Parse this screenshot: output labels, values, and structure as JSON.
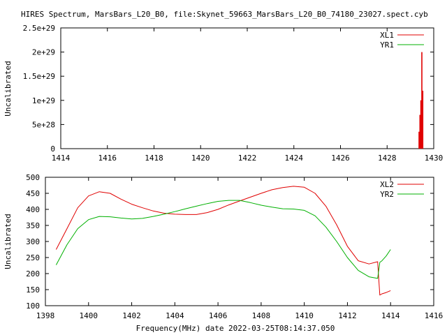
{
  "page": {
    "title": "HIRES Spectrum, MarsBars_L20_B0, file:Skynet_59663_MarsBars_L20_B0_74180_23027.spect.cyb",
    "footer_xlabel": "Frequency(MHz) date 2022-03-25T08:14:37.050"
  },
  "colors": {
    "series_1": "#e00000",
    "series_2": "#00b000",
    "axis": "#000000",
    "background": "#ffffff"
  },
  "chart_data": [
    {
      "type": "line",
      "title": "",
      "xlabel": "",
      "ylabel": "Uncalibrated",
      "xlim": [
        1414,
        1430
      ],
      "ylim": [
        0,
        2.5e+29
      ],
      "x_ticks": [
        "1414",
        "1416",
        "1418",
        "1420",
        "1422",
        "1424",
        "1426",
        "1428",
        "1430"
      ],
      "x_tick_values": [
        1414,
        1416,
        1418,
        1420,
        1422,
        1424,
        1426,
        1428,
        1430
      ],
      "y_ticks": [
        "0",
        "5e+28",
        "1e+29",
        "1.5e+29",
        "2e+29",
        "2.5e+29"
      ],
      "y_tick_values": [
        0,
        5e+28,
        1e+29,
        1.5e+29,
        2e+29,
        2.5e+29
      ],
      "legend_position": "top-right",
      "series": [
        {
          "name": "XL1",
          "color": "#e00000",
          "x": [
            1429.35,
            1429.37,
            1429.39,
            1429.41,
            1429.43,
            1429.45,
            1429.47,
            1429.49,
            1429.51,
            1429.53,
            1429.55
          ],
          "y": [
            0,
            3.5e+28,
            0,
            7e+28,
            0,
            1e+29,
            0,
            2e+29,
            0,
            1.2e+29,
            0
          ]
        },
        {
          "name": "YR1",
          "color": "#00b000",
          "x": [],
          "y": []
        }
      ]
    },
    {
      "type": "line",
      "title": "",
      "xlabel": "Frequency(MHz) date 2022-03-25T08:14:37.050",
      "ylabel": "Uncalibrated",
      "xlim": [
        1398,
        1416
      ],
      "ylim": [
        100,
        500
      ],
      "x_ticks": [
        "1398",
        "1400",
        "1402",
        "1404",
        "1406",
        "1408",
        "1410",
        "1412",
        "1414",
        "1416"
      ],
      "x_tick_values": [
        1398,
        1400,
        1402,
        1404,
        1406,
        1408,
        1410,
        1412,
        1414,
        1416
      ],
      "y_ticks": [
        "100",
        "150",
        "200",
        "250",
        "300",
        "350",
        "400",
        "450",
        "500"
      ],
      "y_tick_values": [
        100,
        150,
        200,
        250,
        300,
        350,
        400,
        450,
        500
      ],
      "legend_position": "top-right",
      "series": [
        {
          "name": "XL2",
          "color": "#e00000",
          "x": [
            1398.5,
            1399,
            1399.5,
            1400,
            1400.5,
            1401,
            1401.5,
            1402,
            1402.5,
            1403,
            1403.5,
            1404,
            1404.5,
            1405,
            1405.5,
            1406,
            1406.5,
            1407,
            1407.5,
            1408,
            1408.5,
            1409,
            1409.5,
            1410,
            1410.5,
            1411,
            1411.5,
            1412,
            1412.5,
            1413,
            1413.4,
            1413.5,
            1413.6,
            1413.8,
            1414
          ],
          "y": [
            275,
            340,
            405,
            442,
            455,
            450,
            432,
            416,
            405,
            395,
            388,
            385,
            384,
            384,
            390,
            400,
            414,
            426,
            438,
            450,
            461,
            468,
            472,
            469,
            450,
            410,
            352,
            285,
            240,
            230,
            237,
            133,
            137,
            141,
            147
          ]
        },
        {
          "name": "YR2",
          "color": "#00b000",
          "x": [
            1398.5,
            1399,
            1399.5,
            1400,
            1400.5,
            1401,
            1401.5,
            1402,
            1402.5,
            1403,
            1403.5,
            1404,
            1404.5,
            1405,
            1405.5,
            1406,
            1406.5,
            1407,
            1407.5,
            1408,
            1408.5,
            1409,
            1409.5,
            1410,
            1410.5,
            1411,
            1411.5,
            1412,
            1412.5,
            1413,
            1413.4,
            1413.5,
            1413.6,
            1413.8,
            1414
          ],
          "y": [
            227,
            290,
            340,
            368,
            378,
            377,
            373,
            370,
            372,
            378,
            385,
            393,
            402,
            410,
            418,
            425,
            428,
            428,
            421,
            413,
            407,
            402,
            401,
            397,
            380,
            345,
            300,
            250,
            210,
            190,
            185,
            235,
            240,
            255,
            275
          ]
        }
      ]
    }
  ]
}
